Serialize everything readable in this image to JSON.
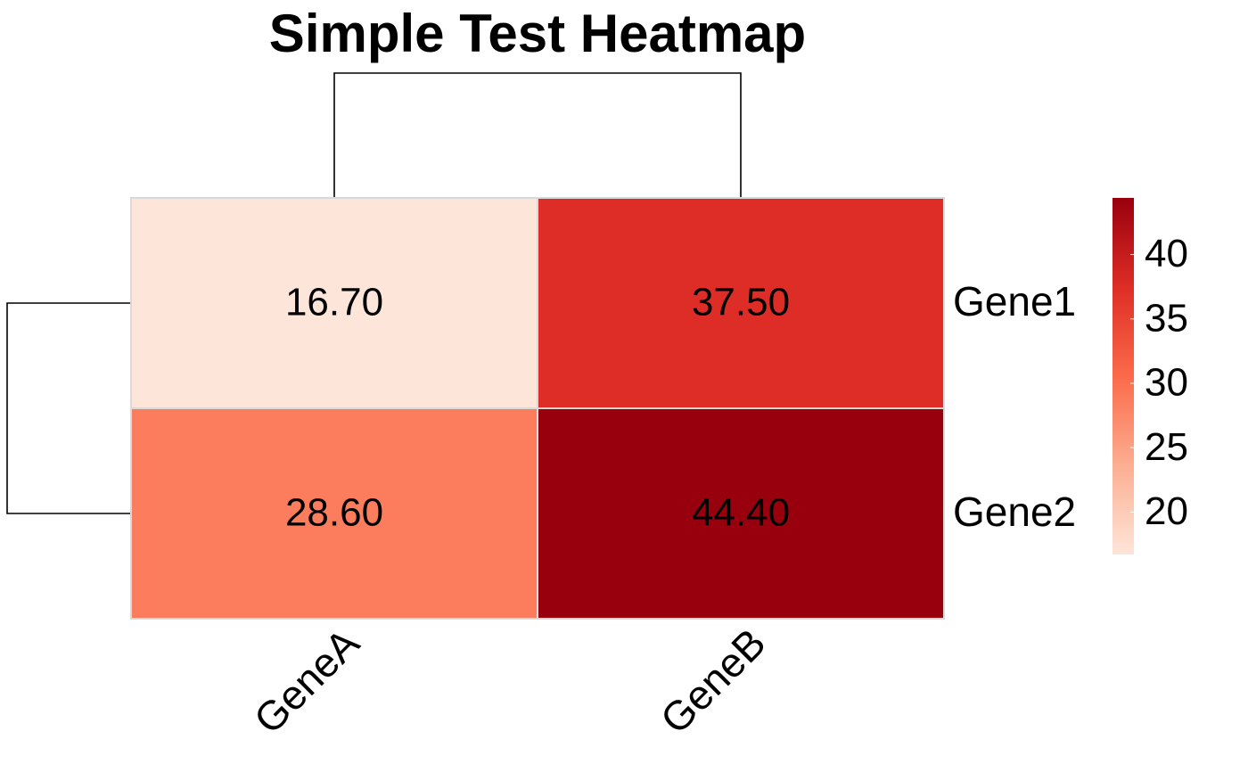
{
  "chart_data": {
    "type": "heatmap",
    "title": "Simple Test Heatmap",
    "x_categories": [
      "GeneA",
      "GeneB"
    ],
    "y_categories": [
      "Gene1",
      "Gene2"
    ],
    "values": [
      [
        16.7,
        37.5
      ],
      [
        28.6,
        44.4
      ]
    ],
    "value_labels": [
      [
        "16.70",
        "37.50"
      ],
      [
        "28.60",
        "44.40"
      ]
    ],
    "clim": [
      16.7,
      44.4
    ],
    "cticks": [
      20,
      25,
      30,
      35,
      40
    ],
    "colormap": [
      "#fee5d9",
      "#fcae91",
      "#fb6a4a",
      "#de2d26",
      "#99000d"
    ],
    "cell_border_color": "#d9d9d9"
  }
}
